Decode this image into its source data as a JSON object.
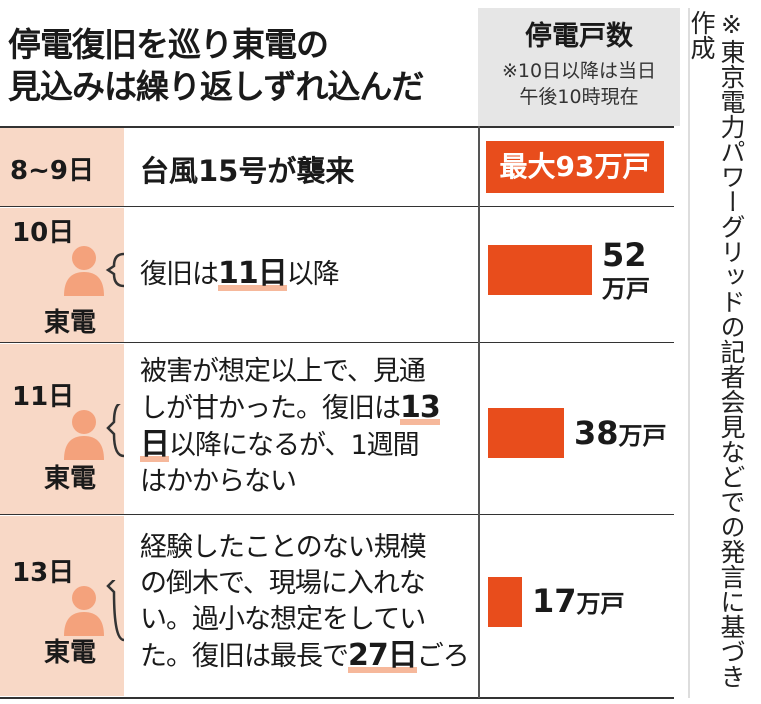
{
  "title_line1": "停電復旧を巡り東電の",
  "title_line2": "見込みは繰り返しずれ込んだ",
  "header": {
    "title": "停電戸数",
    "note_line1": "※10日以降は当日",
    "note_line2": "午後10時現在"
  },
  "first_row": {
    "date": "8~9日",
    "event": "台風15号が襲来",
    "value_label": "最大93万戸"
  },
  "rows": [
    {
      "date": "10日",
      "who": "東電",
      "line1_pre": "復旧は",
      "line1_bold": "11日",
      "line1_post": "以降",
      "value": "52",
      "unit": "万戸"
    },
    {
      "date": "11日",
      "who": "東電",
      "line1": "被害が想定以上で、見通",
      "line2_pre": "しが甘かった。復旧は",
      "line2_bold": "13",
      "line3_bold": "日",
      "line3_post": "以降になるが、1週間",
      "line4": "はかからない",
      "value": "38",
      "unit": "万戸"
    },
    {
      "date": "13日",
      "who": "東電",
      "line1": "経験したことのない規模",
      "line2": "の倒木で、現場に入れな",
      "line3": "い。過小な想定をしてい",
      "line4_pre": "た。復旧は最長で",
      "line4_bold": "27日",
      "line4_post": "ごろ",
      "value": "17",
      "unit": "万戸"
    }
  ],
  "source": "※東京電力パワーグリッドの記者会見などでの発言に基づき作成",
  "colors": {
    "accent": "#e84d1c",
    "date_bg": "#f8d8c6",
    "header_bg": "#e6e6e6",
    "person": "#f4a27c"
  },
  "chart_data": {
    "type": "bar",
    "categories": [
      "8~9日",
      "10日",
      "11日",
      "13日"
    ],
    "values": [
      93,
      52,
      38,
      17
    ],
    "unit": "万戸"
  }
}
